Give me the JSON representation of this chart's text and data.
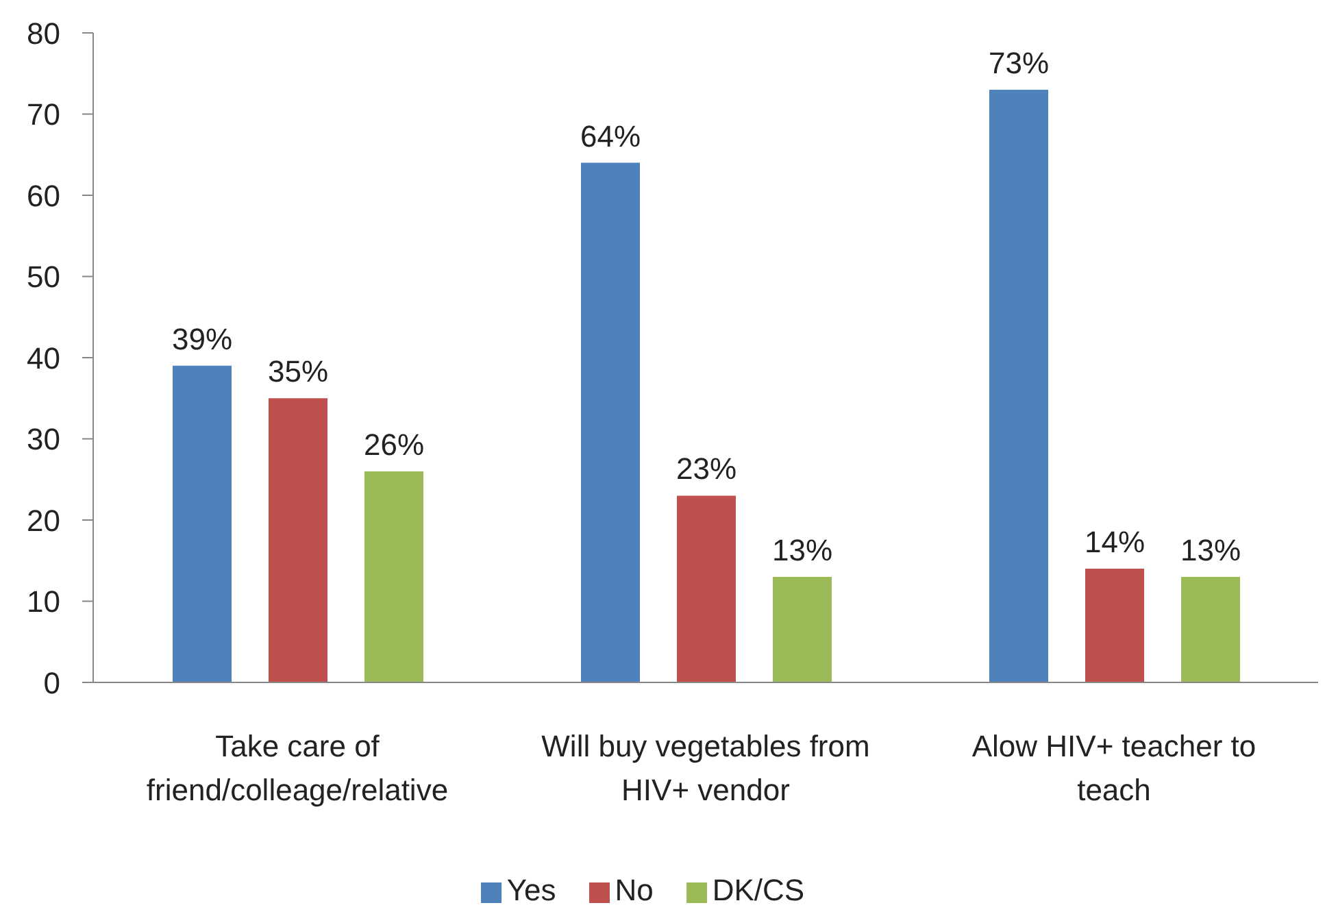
{
  "chart_data": {
    "type": "bar",
    "categories": [
      "Take care of friend/colleage/relative",
      "Will buy vegetables from HIV+ vendor",
      "Alow HIV+ teacher to teach"
    ],
    "series": [
      {
        "name": "Yes",
        "color": "#4f81bd",
        "values": [
          39,
          64,
          73
        ],
        "value_labels": [
          "39%",
          "64%",
          "73%"
        ]
      },
      {
        "name": "No",
        "color": "#c0504d",
        "values": [
          35,
          23,
          14
        ],
        "value_labels": [
          "35%",
          "23%",
          "14%"
        ]
      },
      {
        "name": "DK/CS",
        "color": "#9bbb59",
        "values": [
          26,
          13,
          13
        ],
        "value_labels": [
          "26%",
          "13%",
          "13%"
        ]
      }
    ],
    "ylim": [
      0,
      80
    ],
    "yticks": [
      0,
      10,
      20,
      30,
      40,
      50,
      60,
      70,
      80
    ],
    "grid": false,
    "legend": "bottom"
  }
}
